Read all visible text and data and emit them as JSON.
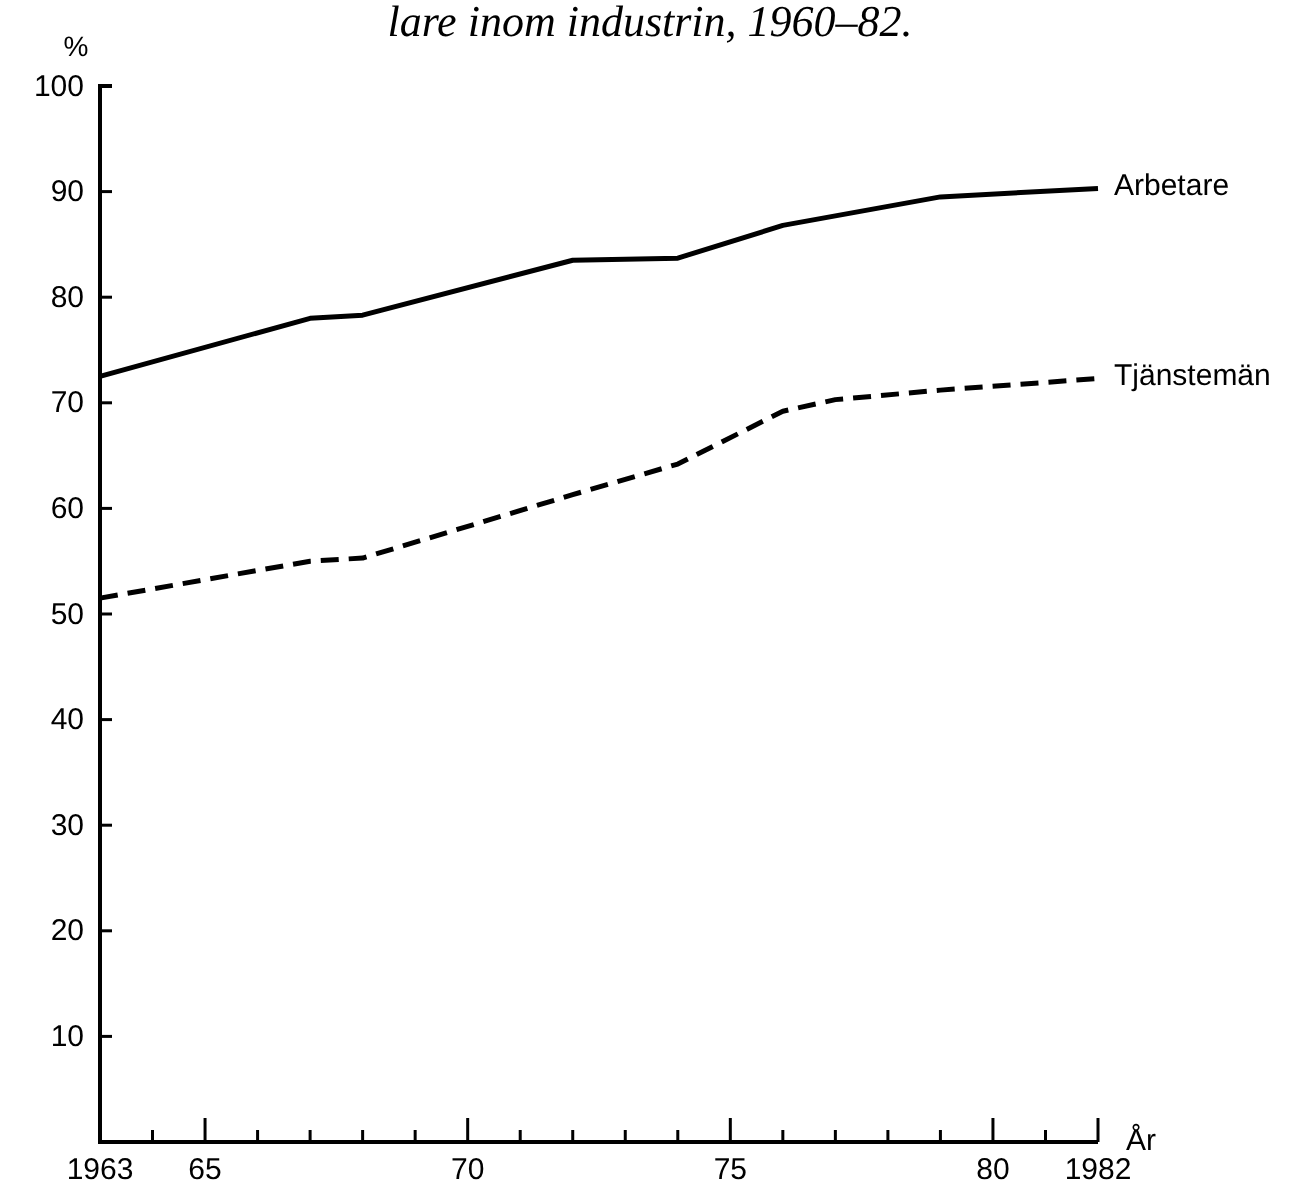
{
  "chart_data": {
    "type": "line",
    "title": "lare inom industrin, 1960–82.",
    "ylabel": "%",
    "xlabel": "År",
    "xlim": [
      1963,
      1982
    ],
    "xticks": [
      1963,
      {
        "value": 1964,
        "label": null
      },
      {
        "value": 1965,
        "label": "65"
      },
      {
        "value": 1966,
        "label": null
      },
      {
        "value": 1967,
        "label": null
      },
      {
        "value": 1968,
        "label": null
      },
      {
        "value": 1969,
        "label": null
      },
      {
        "value": 1970,
        "label": "70"
      },
      {
        "value": 1971,
        "label": null
      },
      {
        "value": 1972,
        "label": null
      },
      {
        "value": 1973,
        "label": null
      },
      {
        "value": 1974,
        "label": null
      },
      {
        "value": 1975,
        "label": "75"
      },
      {
        "value": 1976,
        "label": null
      },
      {
        "value": 1977,
        "label": null
      },
      {
        "value": 1978,
        "label": null
      },
      {
        "value": 1979,
        "label": null
      },
      {
        "value": 1980,
        "label": "80"
      },
      {
        "value": 1981,
        "label": null
      },
      1982
    ],
    "ylim": [
      0,
      100
    ],
    "yticks": [
      10,
      20,
      30,
      40,
      50,
      60,
      70,
      80,
      90,
      100
    ],
    "grid": false,
    "marker": "none",
    "series": [
      {
        "name": "Arbetare",
        "color": "#000000",
        "line_style": "solid",
        "x": [
          1963,
          1967,
          1968,
          1972,
          1974,
          1976,
          1979,
          1982
        ],
        "values": [
          72.5,
          78,
          78.3,
          83.5,
          83.7,
          86.8,
          89.5,
          90.3
        ]
      },
      {
        "name": "Tjänstemän",
        "color": "#000000",
        "line_style": "dashed",
        "x": [
          1963,
          1967,
          1968,
          1972,
          1974,
          1976,
          1977,
          1979,
          1982
        ],
        "values": [
          51.5,
          55,
          55.3,
          61.3,
          64.2,
          69.2,
          70.3,
          71.2,
          72.3
        ]
      }
    ]
  }
}
